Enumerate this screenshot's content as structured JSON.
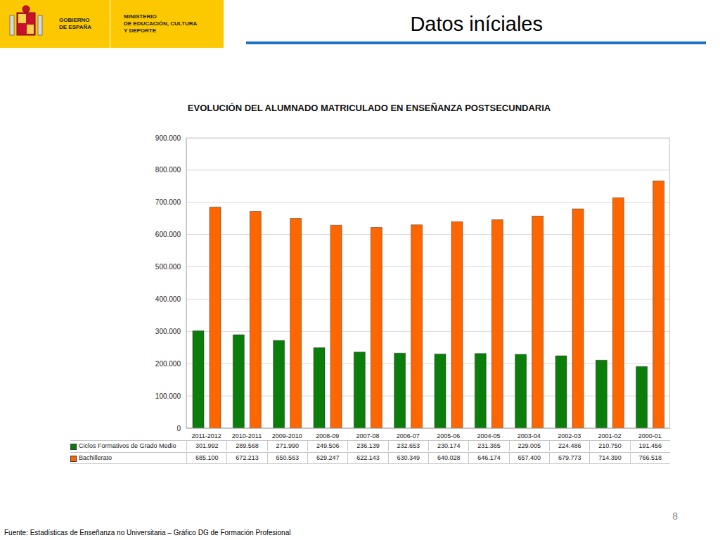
{
  "header": {
    "logo_left_lines": [
      "GOBIERNO",
      "DE ESPAÑA"
    ],
    "logo_right_lines": [
      "MINISTERIO",
      "DE EDUCACIÓN, CULTURA",
      "Y DEPORTE"
    ],
    "title": "Datos iníciales"
  },
  "chart_data": {
    "type": "bar",
    "title": "EVOLUCIÓN DEL ALUMNADO MATRICULADO EN ENSEÑANZA POSTSECUNDARIA",
    "categories": [
      "2011-2012",
      "2010-2011",
      "2009-2010",
      "2008-09",
      "2007-08",
      "2006-07",
      "2005-06",
      "2004-05",
      "2003-04",
      "2002-03",
      "2001-02",
      "2000-01"
    ],
    "series": [
      {
        "name": "Ciclos Formativos de Grado Medio",
        "color": "#0a7d0a",
        "values": [
          301992,
          289568,
          271990,
          249506,
          236139,
          232653,
          230174,
          231365,
          229005,
          224486,
          210750,
          191456
        ],
        "value_labels": [
          "301.992",
          "289.568",
          "271.990",
          "249.506",
          "236.139",
          "232.653",
          "230.174",
          "231.365",
          "229.005",
          "224.486",
          "210.750",
          "191.456"
        ]
      },
      {
        "name": "Bachillerato",
        "color": "#ff6600",
        "values": [
          685100,
          672213,
          650563,
          629247,
          622143,
          630349,
          640028,
          646174,
          657400,
          679773,
          714390,
          766518
        ],
        "value_labels": [
          "685.100",
          "672.213",
          "650.563",
          "629.247",
          "622.143",
          "630.349",
          "640.028",
          "646.174",
          "657.400",
          "679.773",
          "714.390",
          "766.518"
        ]
      }
    ],
    "ylim": [
      0,
      900000
    ],
    "yticks": [
      0,
      {
        "value": 100000,
        "label": "100.000"
      },
      {
        "value": 200000,
        "label": "200.000"
      },
      {
        "value": 300000,
        "label": "300.000"
      },
      {
        "value": 400000,
        "label": "400.000"
      },
      {
        "value": 500000,
        "label": "500.000"
      },
      {
        "value": 600000,
        "label": "600.000"
      },
      {
        "value": 700000,
        "label": "700.000"
      },
      {
        "value": 800000,
        "label": "800.000"
      },
      {
        "value": 900000,
        "label": "900.000"
      }
    ],
    "grid": true
  },
  "footer": {
    "source": "Fuente: Estadísticas de Enseñanza no Universitaria – Gráfico DG de Formación Profesional",
    "page": "8"
  }
}
